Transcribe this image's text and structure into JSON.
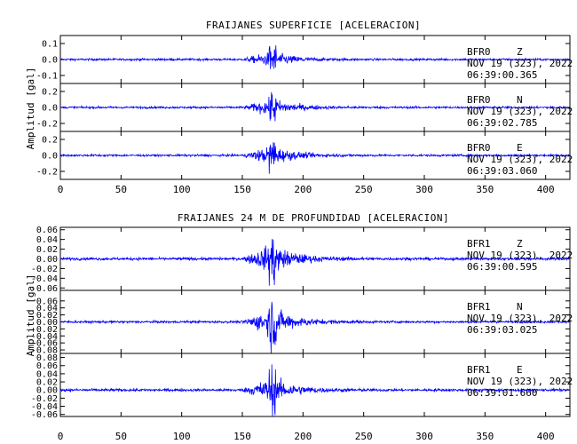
{
  "chart_data": [
    {
      "type": "line",
      "title": "FRAIJANES SUPERFICIE [ACELERACION]",
      "ylabel": "Amplitud [gal]",
      "xlim": [
        0,
        420
      ],
      "xticks": [
        "0",
        "50",
        "100",
        "150",
        "200",
        "250",
        "300",
        "350",
        "400"
      ],
      "panels": [
        {
          "station": "BFR0",
          "component": "Z",
          "date": "NOV 19 (323), 2022",
          "time": "06:39:00.365",
          "ylim": [
            -0.15,
            0.15
          ],
          "yticks": [
            "0.1",
            "0.0",
            "-0.1"
          ],
          "noise": 0.006,
          "peak": 0.09,
          "onset": 150,
          "peak_time": 175
        },
        {
          "station": "BFR0",
          "component": "N",
          "date": "NOV 19 (323), 2022",
          "time": "06:39:02.785",
          "ylim": [
            -0.3,
            0.3
          ],
          "yticks": [
            "0.2",
            "0.0",
            "-0.2"
          ],
          "noise": 0.012,
          "peak": 0.2,
          "onset": 150,
          "peak_time": 175
        },
        {
          "station": "BFR0",
          "component": "E",
          "date": "NOV 19 (323), 2022",
          "time": "06:39:03.060",
          "ylim": [
            -0.3,
            0.3
          ],
          "yticks": [
            "0.2",
            "0.0",
            "-0.2"
          ],
          "noise": 0.012,
          "peak": 0.22,
          "onset": 150,
          "peak_time": 175
        }
      ]
    },
    {
      "type": "line",
      "title": "FRAIJANES 24 M DE PROFUNDIDAD [ACELERACION]",
      "ylabel": "Amplitud [gal]",
      "xlim": [
        0,
        420
      ],
      "xticks": [
        "0",
        "50",
        "100",
        "150",
        "200",
        "250",
        "300",
        "350",
        "400"
      ],
      "panels": [
        {
          "station": "BFR1",
          "component": "Z",
          "date": "NOV 19 (323), 2022",
          "time": "06:39:00.595",
          "ylim": [
            -0.065,
            0.065
          ],
          "yticks": [
            "0.06",
            "0.04",
            "0.02",
            "0.00",
            "-0.02",
            "-0.04",
            "-0.06"
          ],
          "noise": 0.0025,
          "peak": 0.058,
          "onset": 150,
          "peak_time": 175
        },
        {
          "station": "BFR1",
          "component": "N",
          "date": "NOV 19 (323), 2022",
          "time": "06:39:03.025",
          "ylim": [
            -0.09,
            0.09
          ],
          "yticks": [
            "0.06",
            "0.04",
            "0.02",
            "0.00",
            "-0.02",
            "-0.04",
            "-0.06",
            "-0.08"
          ],
          "noise": 0.003,
          "peak": 0.08,
          "onset": 150,
          "peak_time": 175
        },
        {
          "station": "BFR1",
          "component": "E",
          "date": "NOV 19 (323), 2022",
          "time": "06:39:01.660",
          "ylim": [
            -0.065,
            0.09
          ],
          "yticks": [
            "0.08",
            "0.06",
            "0.04",
            "0.02",
            "0.00",
            "-0.02",
            "-0.04",
            "-0.06"
          ],
          "noise": 0.003,
          "peak": 0.06,
          "onset": 150,
          "peak_time": 175
        }
      ]
    }
  ]
}
